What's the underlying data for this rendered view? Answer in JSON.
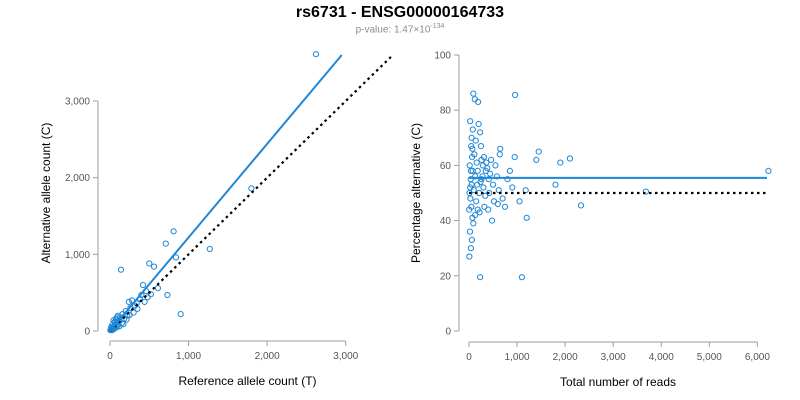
{
  "title": "rs6731 - ENSG00000164733",
  "subtitle": {
    "prefix": "p-value: 1.47×10",
    "exponent": "-134"
  },
  "colors": {
    "accent": "#1f87d6",
    "axis": "#9e9e9e",
    "reference": "#000000"
  },
  "chart_data": [
    {
      "type": "scatter",
      "xlabel": "Reference allele count (T)",
      "ylabel": "Alternative allele count (C)",
      "xlim": [
        0,
        3500
      ],
      "ylim": [
        0,
        3600
      ],
      "xticks": [
        0,
        1000,
        2000,
        3000
      ],
      "xtick_labels": [
        "0",
        "1,000",
        "2,000",
        "3,000"
      ],
      "yticks": [
        0,
        1000,
        2000,
        3000
      ],
      "ytick_labels": [
        "0",
        "1,000",
        "2,000",
        "3,000"
      ],
      "grid": false,
      "fit_line": {
        "x": [
          0,
          2950
        ],
        "y": [
          0,
          3600
        ]
      },
      "reference_line": {
        "x": [
          0,
          3600
        ],
        "y": [
          0,
          3600
        ],
        "style": "dotted"
      },
      "points": [
        [
          2620,
          3610
        ],
        [
          1800,
          1860
        ],
        [
          1270,
          1070
        ],
        [
          900,
          220
        ],
        [
          840,
          960
        ],
        [
          810,
          1300
        ],
        [
          730,
          470
        ],
        [
          710,
          1140
        ],
        [
          610,
          560
        ],
        [
          560,
          840
        ],
        [
          520,
          480
        ],
        [
          500,
          880
        ],
        [
          460,
          520
        ],
        [
          420,
          600
        ],
        [
          380,
          420
        ],
        [
          340,
          360
        ],
        [
          300,
          240
        ],
        [
          280,
          400
        ],
        [
          260,
          300
        ],
        [
          240,
          380
        ],
        [
          220,
          200
        ],
        [
          200,
          260
        ],
        [
          180,
          160
        ],
        [
          160,
          220
        ],
        [
          150,
          100
        ],
        [
          140,
          800
        ],
        [
          130,
          180
        ],
        [
          120,
          140
        ],
        [
          110,
          90
        ],
        [
          100,
          200
        ],
        [
          95,
          60
        ],
        [
          90,
          120
        ],
        [
          80,
          70
        ],
        [
          75,
          160
        ],
        [
          70,
          40
        ],
        [
          65,
          110
        ],
        [
          60,
          80
        ],
        [
          55,
          30
        ],
        [
          50,
          60
        ],
        [
          45,
          140
        ],
        [
          40,
          20
        ],
        [
          35,
          50
        ],
        [
          30,
          80
        ],
        [
          25,
          10
        ],
        [
          20,
          30
        ],
        [
          15,
          50
        ],
        [
          10,
          20
        ],
        [
          5,
          10
        ],
        [
          120,
          60
        ],
        [
          170,
          90
        ],
        [
          210,
          150
        ],
        [
          250,
          210
        ],
        [
          320,
          330
        ],
        [
          350,
          290
        ],
        [
          400,
          470
        ],
        [
          440,
          380
        ],
        [
          480,
          440
        ],
        [
          90,
          180
        ],
        [
          60,
          120
        ],
        [
          30,
          40
        ]
      ]
    },
    {
      "type": "scatter",
      "xlabel": "Total number of reads",
      "ylabel": "Percentage alternative (C)",
      "xlim": [
        0,
        6200
      ],
      "ylim": [
        0,
        100
      ],
      "xticks": [
        0,
        1000,
        2000,
        3000,
        4000,
        5000,
        6000
      ],
      "xtick_labels": [
        "0",
        "1,000",
        "2,000",
        "3,000",
        "4,000",
        "5,000",
        "6,000"
      ],
      "yticks": [
        0,
        20,
        40,
        60,
        80,
        100
      ],
      "ytick_labels": [
        "0",
        "20",
        "40",
        "60",
        "80",
        "100"
      ],
      "grid": false,
      "fit_line": {
        "x": [
          0,
          6200
        ],
        "y": [
          55.5,
          55.5
        ]
      },
      "reference_line": {
        "x": [
          0,
          6200
        ],
        "y": [
          50,
          50
        ],
        "style": "dotted"
      },
      "points": [
        [
          6230,
          58
        ],
        [
          3680,
          50.5
        ],
        [
          2330,
          45.5
        ],
        [
          2100,
          62.5
        ],
        [
          1900,
          61
        ],
        [
          1800,
          53
        ],
        [
          1450,
          65
        ],
        [
          1400,
          62
        ],
        [
          1200,
          41
        ],
        [
          1180,
          51
        ],
        [
          1100,
          19.5
        ],
        [
          1050,
          47
        ],
        [
          960,
          85.5
        ],
        [
          950,
          63
        ],
        [
          900,
          52
        ],
        [
          850,
          58
        ],
        [
          800,
          55
        ],
        [
          750,
          45
        ],
        [
          700,
          48
        ],
        [
          650,
          66
        ],
        [
          640,
          64
        ],
        [
          620,
          51
        ],
        [
          600,
          46
        ],
        [
          580,
          56
        ],
        [
          550,
          60
        ],
        [
          520,
          47
        ],
        [
          500,
          53
        ],
        [
          480,
          40
        ],
        [
          460,
          62
        ],
        [
          440,
          57
        ],
        [
          420,
          50
        ],
        [
          400,
          44
        ],
        [
          380,
          59
        ],
        [
          360,
          61
        ],
        [
          340,
          49
        ],
        [
          320,
          45
        ],
        [
          300,
          52
        ],
        [
          290,
          60
        ],
        [
          280,
          56
        ],
        [
          260,
          62
        ],
        [
          250,
          67
        ],
        [
          240,
          54
        ],
        [
          230,
          72
        ],
        [
          220,
          43
        ],
        [
          210,
          50
        ],
        [
          200,
          75
        ],
        [
          190,
          83
        ],
        [
          180,
          58
        ],
        [
          170,
          53
        ],
        [
          160,
          61
        ],
        [
          150,
          47
        ],
        [
          140,
          69
        ],
        [
          130,
          56
        ],
        [
          120,
          84
        ],
        [
          110,
          64
        ],
        [
          100,
          51
        ],
        [
          90,
          86
        ],
        [
          80,
          73
        ],
        [
          75,
          58
        ],
        [
          70,
          41
        ],
        [
          65,
          63
        ],
        [
          60,
          33
        ],
        [
          55,
          53
        ],
        [
          50,
          45
        ],
        [
          45,
          67
        ],
        [
          40,
          30
        ],
        [
          35,
          55
        ],
        [
          30,
          48
        ],
        [
          25,
          76
        ],
        [
          20,
          36
        ],
        [
          15,
          60
        ],
        [
          10,
          50
        ],
        [
          8,
          27
        ],
        [
          5,
          44
        ],
        [
          230,
          19.5
        ],
        [
          180,
          44
        ],
        [
          90,
          39
        ],
        [
          130,
          42
        ],
        [
          260,
          55
        ],
        [
          310,
          63
        ],
        [
          350,
          58
        ],
        [
          410,
          55
        ],
        [
          70,
          66
        ],
        [
          55,
          70
        ],
        [
          40,
          58
        ],
        [
          25,
          52
        ]
      ]
    }
  ]
}
